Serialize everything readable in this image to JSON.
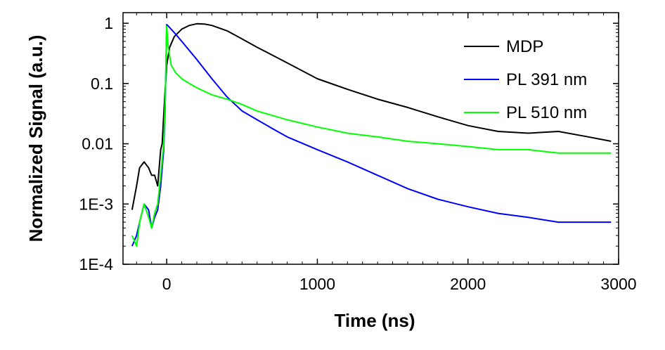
{
  "chart_data": {
    "type": "line",
    "title": "",
    "xlabel": "Time (ns)",
    "ylabel": "Normalized Signal (a.u.)",
    "xlim": [
      -290,
      3000
    ],
    "ylim": [
      0.0001,
      1.5
    ],
    "yscale": "log",
    "grid": false,
    "legend_position": "top-right",
    "xticks": [
      {
        "value": 0,
        "label": "0"
      },
      {
        "value": 1000,
        "label": "1000"
      },
      {
        "value": 2000,
        "label": "2000"
      },
      {
        "value": 3000,
        "label": "3000"
      }
    ],
    "yticks": [
      {
        "value": 1,
        "label": "1"
      },
      {
        "value": 0.1,
        "label": "0.1"
      },
      {
        "value": 0.01,
        "label": "0.01"
      },
      {
        "value": 0.001,
        "label": "1E-3"
      },
      {
        "value": 0.0001,
        "label": "1E-4"
      }
    ],
    "series": [
      {
        "name": "MDP",
        "color": "#000000",
        "x": [
          -230,
          -200,
          -180,
          -150,
          -120,
          -100,
          -80,
          -60,
          -40,
          -30,
          -20,
          -10,
          0,
          20,
          50,
          100,
          150,
          200,
          250,
          300,
          400,
          500,
          600,
          800,
          1000,
          1200,
          1400,
          1600,
          1800,
          2000,
          2200,
          2400,
          2600,
          2800,
          2950
        ],
        "y": [
          0.0008,
          0.002,
          0.004,
          0.005,
          0.004,
          0.003,
          0.003,
          0.002,
          0.008,
          0.01,
          0.03,
          0.08,
          0.2,
          0.4,
          0.6,
          0.8,
          0.92,
          0.98,
          0.97,
          0.92,
          0.75,
          0.55,
          0.4,
          0.22,
          0.12,
          0.08,
          0.055,
          0.04,
          0.028,
          0.02,
          0.016,
          0.015,
          0.016,
          0.013,
          0.011
        ]
      },
      {
        "name": "PL 391 nm",
        "color": "#0000ff",
        "x": [
          -230,
          -200,
          -180,
          -150,
          -120,
          -100,
          -80,
          -60,
          -40,
          -20,
          -10,
          0,
          10,
          50,
          100,
          200,
          300,
          400,
          500,
          600,
          700,
          800,
          1000,
          1200,
          1400,
          1600,
          1800,
          2000,
          2200,
          2400,
          2600,
          2800,
          2950
        ],
        "y": [
          0.0002,
          0.0003,
          0.0005,
          0.001,
          0.0008,
          0.0004,
          0.0006,
          0.0008,
          0.002,
          0.008,
          0.04,
          0.95,
          0.9,
          0.7,
          0.5,
          0.25,
          0.12,
          0.06,
          0.035,
          0.025,
          0.018,
          0.013,
          0.008,
          0.005,
          0.003,
          0.0018,
          0.0012,
          0.0009,
          0.0007,
          0.0006,
          0.0005,
          0.0005,
          0.0005
        ]
      },
      {
        "name": "PL 510 nm",
        "color": "#00ff00",
        "x": [
          -230,
          -200,
          -180,
          -150,
          -120,
          -100,
          -80,
          -60,
          -40,
          -20,
          -10,
          0,
          10,
          30,
          60,
          100,
          150,
          200,
          300,
          400,
          500,
          600,
          800,
          1000,
          1200,
          1400,
          1600,
          1800,
          2000,
          2200,
          2400,
          2600,
          2800,
          2950
        ],
        "y": [
          0.0003,
          0.0002,
          0.0005,
          0.001,
          0.0006,
          0.0004,
          0.0007,
          0.001,
          0.003,
          0.01,
          0.05,
          0.9,
          0.4,
          0.2,
          0.15,
          0.12,
          0.1,
          0.085,
          0.065,
          0.055,
          0.045,
          0.035,
          0.025,
          0.019,
          0.015,
          0.013,
          0.011,
          0.01,
          0.009,
          0.008,
          0.008,
          0.007,
          0.007,
          0.007
        ]
      }
    ]
  }
}
